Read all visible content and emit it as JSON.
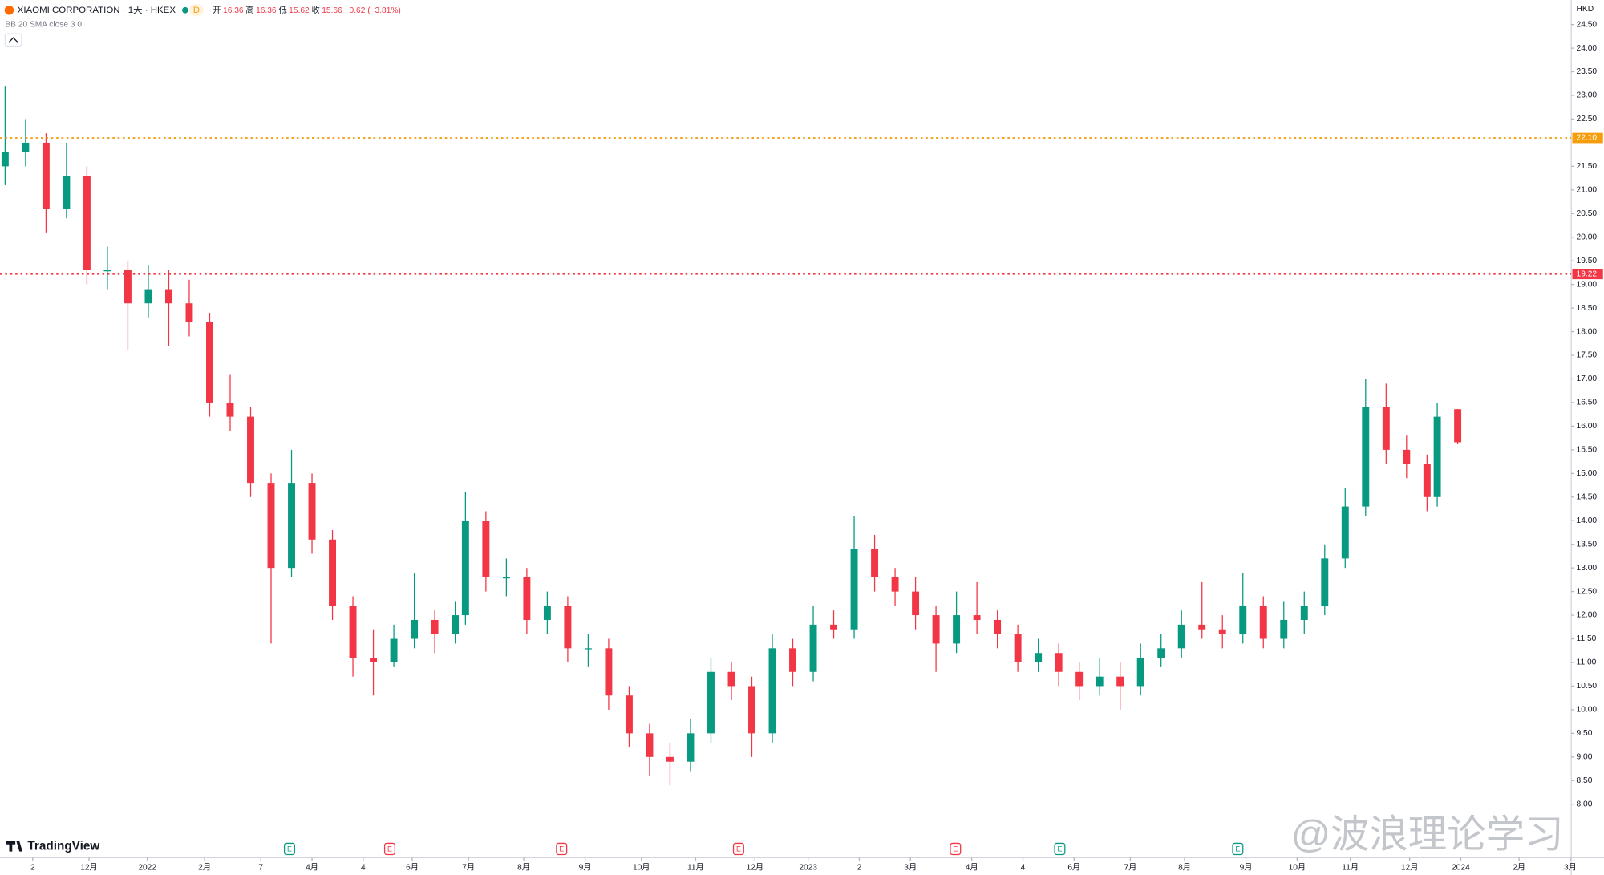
{
  "chart_data": {
    "type": "candlestick",
    "title": "XIAOMI CORPORATION · 1天 · HKEX",
    "interval_badge": "D",
    "indicator": "BB 20 SMA close 3 0",
    "currency": "HKD",
    "legend_labels": [
      "开",
      "高",
      "低",
      "收"
    ],
    "change_text": "−0.62 (−3.81%)",
    "brand": "TradingView",
    "watermark": "@波浪理论学习",
    "up_color": "#089981",
    "down_color": "#f23645",
    "x": [
      0.5,
      2.5,
      4.5,
      6.5,
      8.5,
      10.5,
      12.5,
      14.5,
      16.5,
      18.5,
      20.5,
      22.5,
      24.5,
      26.5,
      28.5,
      30.5,
      32.5,
      34.5,
      36.5,
      38.5,
      40.5,
      42.5,
      44.5,
      45.5,
      47.5,
      49.5,
      51.5,
      53.5,
      55.5,
      57.5,
      59.5,
      61.5,
      63.5,
      65.5,
      67.5,
      69.5,
      71.5,
      73.5,
      75.5,
      77.5,
      79.5,
      81.5,
      83.5,
      85.5,
      87.5,
      89.5,
      91.5,
      93.5,
      95.5,
      97.5,
      99.5,
      101.5,
      103.5,
      105.5,
      107.5,
      109.5,
      111.5,
      113.5,
      115.5,
      117.5,
      119.5,
      121.5,
      123.5,
      125.5,
      127.5,
      129.5,
      131.5,
      133.5,
      135.5,
      137.5,
      139.5,
      140.5,
      142.5
    ],
    "open": [
      21.5,
      21.8,
      22.0,
      20.6,
      21.3,
      19.3,
      19.3,
      18.6,
      18.9,
      18.6,
      18.2,
      16.5,
      16.2,
      14.8,
      13.0,
      14.8,
      13.6,
      12.2,
      11.1,
      11.0,
      11.5,
      11.9,
      11.6,
      12.0,
      14.0,
      12.8,
      12.8,
      11.9,
      12.2,
      11.3,
      11.3,
      10.3,
      9.5,
      9.0,
      8.9,
      9.5,
      10.8,
      10.5,
      9.5,
      11.3,
      10.8,
      11.8,
      11.7,
      13.4,
      12.8,
      12.5,
      12.0,
      11.4,
      12.0,
      11.9,
      11.6,
      11.0,
      11.2,
      10.8,
      10.5,
      10.7,
      10.5,
      11.1,
      11.3,
      11.8,
      11.7,
      11.6,
      12.2,
      11.5,
      11.9,
      12.2,
      13.2,
      14.3,
      16.4,
      15.5,
      15.2,
      14.5,
      16.36
    ],
    "high": [
      23.2,
      22.5,
      22.2,
      22.0,
      21.5,
      19.8,
      19.5,
      19.4,
      19.3,
      19.1,
      18.4,
      17.1,
      16.4,
      15.0,
      15.5,
      15.0,
      13.8,
      12.4,
      11.7,
      11.8,
      12.9,
      12.1,
      12.3,
      14.6,
      14.2,
      13.2,
      13.0,
      12.5,
      12.4,
      11.6,
      11.5,
      10.5,
      9.7,
      9.3,
      9.8,
      11.1,
      11.0,
      10.7,
      11.6,
      11.5,
      12.2,
      12.1,
      14.1,
      13.7,
      13.0,
      12.8,
      12.2,
      12.5,
      12.7,
      12.1,
      11.8,
      11.5,
      11.4,
      11.0,
      11.1,
      11.0,
      11.4,
      11.6,
      12.1,
      12.7,
      12.0,
      12.9,
      12.4,
      12.3,
      12.5,
      13.5,
      14.7,
      17.0,
      16.9,
      15.8,
      15.4,
      16.5,
      16.36
    ],
    "low": [
      21.1,
      21.5,
      20.1,
      20.4,
      19.0,
      18.9,
      17.6,
      18.3,
      17.7,
      17.9,
      16.2,
      15.9,
      14.5,
      11.4,
      12.8,
      13.3,
      11.9,
      10.7,
      10.3,
      10.9,
      11.3,
      11.2,
      11.4,
      11.8,
      12.5,
      12.4,
      11.6,
      11.6,
      11.0,
      10.9,
      10.0,
      9.2,
      8.6,
      8.4,
      8.7,
      9.3,
      10.2,
      9.0,
      9.3,
      10.5,
      10.6,
      11.5,
      11.5,
      12.5,
      12.2,
      11.7,
      10.8,
      11.2,
      11.6,
      11.3,
      10.8,
      10.8,
      10.5,
      10.2,
      10.3,
      10.0,
      10.3,
      10.9,
      11.1,
      11.5,
      11.3,
      11.4,
      11.3,
      11.3,
      11.6,
      12.0,
      13.0,
      14.1,
      15.2,
      14.9,
      14.2,
      14.3,
      15.62
    ],
    "close": [
      21.8,
      22.0,
      20.6,
      21.3,
      19.3,
      19.3,
      18.6,
      18.9,
      18.6,
      18.2,
      16.5,
      16.2,
      14.8,
      13.0,
      14.8,
      13.6,
      12.2,
      11.1,
      11.0,
      11.5,
      11.9,
      11.6,
      12.0,
      14.0,
      12.8,
      12.8,
      11.9,
      12.2,
      11.3,
      11.3,
      10.3,
      9.5,
      9.0,
      8.9,
      9.5,
      10.8,
      10.5,
      9.5,
      11.3,
      10.8,
      11.8,
      11.7,
      13.4,
      12.8,
      12.5,
      12.0,
      11.4,
      12.0,
      11.9,
      11.6,
      11.0,
      11.2,
      10.8,
      10.5,
      10.7,
      10.5,
      11.1,
      11.3,
      11.8,
      11.7,
      11.6,
      12.2,
      11.5,
      11.9,
      12.2,
      13.2,
      14.3,
      16.4,
      15.5,
      15.2,
      14.5,
      16.2,
      15.66
    ],
    "xlim": [
      0,
      153.6
    ],
    "ylim": [
      6.87,
      25.02
    ],
    "xticks": [
      {
        "value": 3.2,
        "label": "2"
      },
      {
        "value": 8.7,
        "label": "12月"
      },
      {
        "value": 14.4,
        "label": "2022"
      },
      {
        "value": 20.0,
        "label": "2月"
      },
      {
        "value": 25.5,
        "label": "7"
      },
      {
        "value": 30.5,
        "label": "4月"
      },
      {
        "value": 35.5,
        "label": "4"
      },
      {
        "value": 40.3,
        "label": "6月"
      },
      {
        "value": 45.8,
        "label": "7月"
      },
      {
        "value": 51.2,
        "label": "8月"
      },
      {
        "value": 57.2,
        "label": "9月"
      },
      {
        "value": 62.7,
        "label": "10月"
      },
      {
        "value": 68.0,
        "label": "11月"
      },
      {
        "value": 73.8,
        "label": "12月"
      },
      {
        "value": 79.0,
        "label": "2023"
      },
      {
        "value": 84.0,
        "label": "2"
      },
      {
        "value": 89.0,
        "label": "3月"
      },
      {
        "value": 95.0,
        "label": "4月"
      },
      {
        "value": 100.0,
        "label": "4"
      },
      {
        "value": 105.0,
        "label": "6月"
      },
      {
        "value": 110.5,
        "label": "7月"
      },
      {
        "value": 115.8,
        "label": "8月"
      },
      {
        "value": 121.8,
        "label": "9月"
      },
      {
        "value": 126.8,
        "label": "10月"
      },
      {
        "value": 132.0,
        "label": "11月"
      },
      {
        "value": 137.8,
        "label": "12月"
      },
      {
        "value": 142.8,
        "label": "2024"
      },
      {
        "value": 148.5,
        "label": "2月"
      },
      {
        "value": 153.5,
        "label": "3月"
      }
    ],
    "yticks": [
      {
        "value": 8,
        "label": "8.00"
      },
      {
        "value": 8.5,
        "label": "8.50"
      },
      {
        "value": 9,
        "label": "9.00"
      },
      {
        "value": 9.5,
        "label": "9.50"
      },
      {
        "value": 10,
        "label": "10.00"
      },
      {
        "value": 10.5,
        "label": "10.50"
      },
      {
        "value": 11,
        "label": "11.00"
      },
      {
        "value": 11.5,
        "label": "11.50"
      },
      {
        "value": 12,
        "label": "12.00"
      },
      {
        "value": 12.5,
        "label": "12.50"
      },
      {
        "value": 13,
        "label": "13.00"
      },
      {
        "value": 13.5,
        "label": "13.50"
      },
      {
        "value": 14,
        "label": "14.00"
      },
      {
        "value": 14.5,
        "label": "14.50"
      },
      {
        "value": 15,
        "label": "15.00"
      },
      {
        "value": 15.5,
        "label": "15.50"
      },
      {
        "value": 16,
        "label": "16.00"
      },
      {
        "value": 16.5,
        "label": "16.50"
      },
      {
        "value": 17,
        "label": "17.00"
      },
      {
        "value": 17.5,
        "label": "17.50"
      },
      {
        "value": 18,
        "label": "18.00"
      },
      {
        "value": 18.5,
        "label": "18.50"
      },
      {
        "value": 19,
        "label": "19.00"
      },
      {
        "value": 19.5,
        "label": "19.50"
      },
      {
        "value": 20,
        "label": "20.00"
      },
      {
        "value": 20.5,
        "label": "20.50"
      },
      {
        "value": 21,
        "label": "21.00"
      },
      {
        "value": 21.5,
        "label": "21.50"
      },
      {
        "value": 22.5,
        "label": "22.50"
      },
      {
        "value": 23,
        "label": "23.00"
      },
      {
        "value": 23.5,
        "label": "23.50"
      },
      {
        "value": 24,
        "label": "24.00"
      },
      {
        "value": 24.5,
        "label": "24.50"
      }
    ],
    "levels": [
      {
        "value": 22.1,
        "label": "22.10",
        "color": "#f59d0c"
      },
      {
        "value": 19.22,
        "label": "19.22",
        "color": "#f23645"
      }
    ],
    "events": [
      {
        "x": 28.3,
        "label": "E",
        "color": "#089981"
      },
      {
        "x": 38.1,
        "label": "E",
        "color": "#f23645"
      },
      {
        "x": 54.9,
        "label": "E",
        "color": "#f23645"
      },
      {
        "x": 72.2,
        "label": "E",
        "color": "#f23645"
      },
      {
        "x": 93.4,
        "label": "E",
        "color": "#f23645"
      },
      {
        "x": 103.6,
        "label": "E",
        "color": "#089981"
      },
      {
        "x": 121.0,
        "label": "E",
        "color": "#089981"
      }
    ]
  }
}
